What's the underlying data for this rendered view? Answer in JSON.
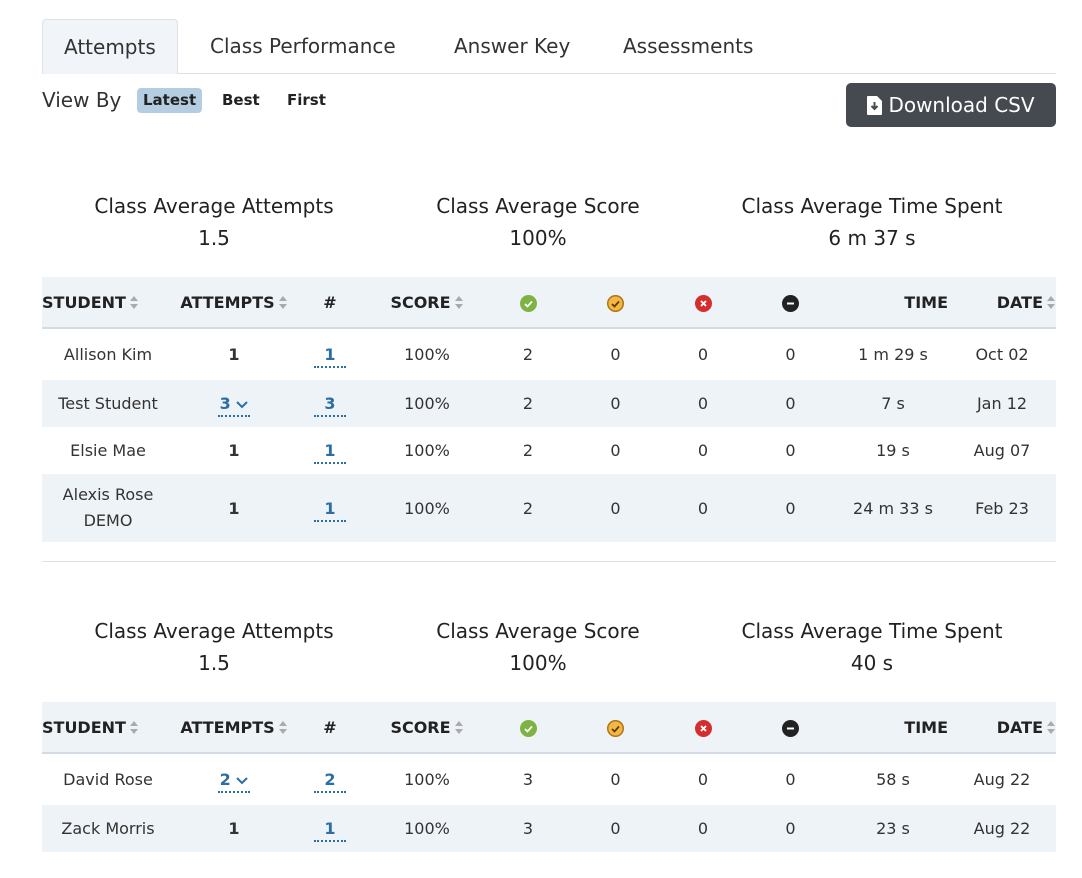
{
  "tabs": [
    "Attempts",
    "Class Performance",
    "Answer Key",
    "Assessments"
  ],
  "view_by": {
    "label": "View By",
    "options": [
      "Latest",
      "Best",
      "First"
    ],
    "selected": "Latest"
  },
  "download_button": "Download CSV",
  "headers": {
    "student": "STUDENT",
    "attempts": "ATTEMPTS",
    "num": "#",
    "score": "SCORE",
    "time": "TIME",
    "date": "DATE"
  },
  "status_icons": [
    "correct-icon",
    "partial-icon",
    "incorrect-icon",
    "unanswered-icon"
  ],
  "colors": {
    "correct": "#7cb342",
    "partial": "#f5b642",
    "incorrect": "#d32f2f",
    "unanswered": "#222222",
    "link": "#2b6ea3",
    "button": "#444a50"
  },
  "sections": [
    {
      "stats": [
        {
          "label": "Class Average Attempts",
          "value": "1.5"
        },
        {
          "label": "Class Average Score",
          "value": "100%"
        },
        {
          "label": "Class Average Time Spent",
          "value": "6 m 37 s"
        }
      ],
      "rows": [
        {
          "student": "Allison Kim",
          "attempts": "1",
          "num": "1",
          "score": "100%",
          "correct": "2",
          "partial": "0",
          "incorrect": "0",
          "unanswered": "0",
          "time": "1 m 29 s",
          "date": "Oct 02"
        },
        {
          "student": "Test Student",
          "attempts": "3",
          "num": "3",
          "score": "100%",
          "correct": "2",
          "partial": "0",
          "incorrect": "0",
          "unanswered": "0",
          "time": "7 s",
          "date": "Jan 12"
        },
        {
          "student": "Elsie Mae",
          "attempts": "1",
          "num": "1",
          "score": "100%",
          "correct": "2",
          "partial": "0",
          "incorrect": "0",
          "unanswered": "0",
          "time": "19 s",
          "date": "Aug 07"
        },
        {
          "student": "Alexis Rose DEMO",
          "attempts": "1",
          "num": "1",
          "score": "100%",
          "correct": "2",
          "partial": "0",
          "incorrect": "0",
          "unanswered": "0",
          "time": "24 m 33 s",
          "date": "Feb 23"
        }
      ]
    },
    {
      "stats": [
        {
          "label": "Class Average Attempts",
          "value": "1.5"
        },
        {
          "label": "Class Average Score",
          "value": "100%"
        },
        {
          "label": "Class Average Time Spent",
          "value": "40 s"
        }
      ],
      "rows": [
        {
          "student": "David Rose",
          "attempts": "2",
          "num": "2",
          "score": "100%",
          "correct": "3",
          "partial": "0",
          "incorrect": "0",
          "unanswered": "0",
          "time": "58 s",
          "date": "Aug 22"
        },
        {
          "student": "Zack Morris",
          "attempts": "1",
          "num": "1",
          "score": "100%",
          "correct": "3",
          "partial": "0",
          "incorrect": "0",
          "unanswered": "0",
          "time": "23 s",
          "date": "Aug 22"
        }
      ]
    }
  ]
}
